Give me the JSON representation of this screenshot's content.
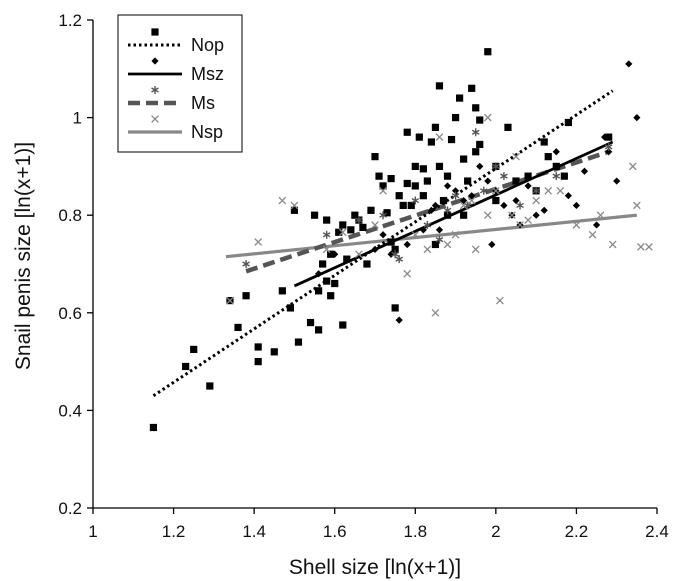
{
  "chart_data": {
    "type": "scatter",
    "title": "",
    "xlabel": "Shell size [ln(x+1)]",
    "ylabel": "Snail penis size [ln(x+1)]",
    "xlim": [
      1,
      2.4
    ],
    "ylim": [
      0.2,
      1.2
    ],
    "x_ticks": [
      "1",
      "1.2",
      "1.4",
      "1.6",
      "1.8",
      "2",
      "2.2",
      "2.4"
    ],
    "y_ticks": [
      "0.2",
      "0.4",
      "0.6",
      "0.8",
      "1",
      "1.2"
    ],
    "grid": false,
    "legend_position": "top-left",
    "series": [
      {
        "name": "Nop",
        "marker": "square",
        "line_style": "dotted",
        "color": "#000000",
        "fit_line": [
          [
            1.15,
            0.43
          ],
          [
            2.29,
            1.055
          ]
        ],
        "points": [
          [
            1.15,
            0.365
          ],
          [
            1.23,
            0.49
          ],
          [
            1.25,
            0.525
          ],
          [
            1.29,
            0.45
          ],
          [
            1.34,
            0.625
          ],
          [
            1.36,
            0.57
          ],
          [
            1.38,
            0.635
          ],
          [
            1.41,
            0.5
          ],
          [
            1.41,
            0.53
          ],
          [
            1.45,
            0.52
          ],
          [
            1.47,
            0.645
          ],
          [
            1.49,
            0.61
          ],
          [
            1.51,
            0.54
          ],
          [
            1.54,
            0.58
          ],
          [
            1.56,
            0.565
          ],
          [
            1.56,
            0.645
          ],
          [
            1.57,
            0.7
          ],
          [
            1.58,
            0.665
          ],
          [
            1.59,
            0.635
          ],
          [
            1.59,
            0.72
          ],
          [
            1.6,
            0.66
          ],
          [
            1.61,
            0.765
          ],
          [
            1.62,
            0.575
          ],
          [
            1.63,
            0.71
          ],
          [
            1.64,
            0.77
          ],
          [
            1.65,
            0.8
          ],
          [
            1.67,
            0.775
          ],
          [
            1.68,
            0.7
          ],
          [
            1.69,
            0.81
          ],
          [
            1.7,
            0.92
          ],
          [
            1.72,
            0.86
          ],
          [
            1.73,
            0.805
          ],
          [
            1.74,
            0.745
          ],
          [
            1.75,
            0.61
          ],
          [
            1.75,
            0.73
          ],
          [
            1.76,
            0.84
          ],
          [
            1.77,
            0.82
          ],
          [
            1.78,
            0.865
          ],
          [
            1.79,
            0.82
          ],
          [
            1.8,
            0.86
          ],
          [
            1.81,
            0.96
          ],
          [
            1.82,
            0.895
          ],
          [
            1.83,
            0.87
          ],
          [
            1.84,
            0.95
          ],
          [
            1.85,
            0.98
          ],
          [
            1.86,
            1.065
          ],
          [
            1.86,
            0.9
          ],
          [
            1.87,
            0.83
          ],
          [
            1.88,
            0.88
          ],
          [
            1.89,
            0.955
          ],
          [
            1.9,
            1.0
          ],
          [
            1.91,
            1.04
          ],
          [
            1.92,
            0.915
          ],
          [
            1.93,
            0.87
          ],
          [
            1.94,
            1.06
          ],
          [
            1.95,
            1.02
          ],
          [
            1.96,
            0.995
          ],
          [
            1.98,
            1.135
          ],
          [
            2.0,
            0.83
          ],
          [
            2.03,
            0.98
          ],
          [
            2.08,
            0.88
          ],
          [
            2.1,
            0.85
          ],
          [
            2.12,
            0.95
          ],
          [
            2.13,
            0.92
          ],
          [
            2.15,
            0.9
          ],
          [
            2.17,
            0.88
          ],
          [
            1.5,
            0.81
          ],
          [
            1.55,
            0.8
          ],
          [
            1.58,
            0.79
          ],
          [
            1.62,
            0.78
          ],
          [
            1.66,
            0.79
          ],
          [
            1.71,
            0.88
          ],
          [
            1.74,
            0.875
          ],
          [
            1.78,
            0.97
          ],
          [
            1.8,
            0.9
          ],
          [
            1.82,
            0.84
          ],
          [
            1.85,
            0.74
          ],
          [
            1.88,
            0.8
          ],
          [
            1.92,
            0.8
          ],
          [
            1.95,
            0.93
          ],
          [
            2.0,
            0.9
          ],
          [
            2.05,
            0.87
          ],
          [
            2.18,
            0.99
          ],
          [
            2.28,
            0.96
          ],
          [
            1.96,
            0.945
          ]
        ]
      },
      {
        "name": "Msz",
        "marker": "diamond",
        "line_style": "solid",
        "color": "#000000",
        "fit_line": [
          [
            1.5,
            0.655
          ],
          [
            2.29,
            0.95
          ]
        ],
        "points": [
          [
            1.56,
            0.68
          ],
          [
            1.6,
            0.72
          ],
          [
            1.7,
            0.73
          ],
          [
            1.72,
            0.76
          ],
          [
            1.78,
            0.74
          ],
          [
            1.82,
            0.77
          ],
          [
            1.85,
            0.82
          ],
          [
            1.86,
            0.77
          ],
          [
            1.88,
            0.86
          ],
          [
            1.9,
            0.85
          ],
          [
            1.92,
            0.83
          ],
          [
            1.94,
            0.84
          ],
          [
            1.96,
            0.9
          ],
          [
            1.98,
            0.87
          ],
          [
            2.0,
            0.85
          ],
          [
            2.02,
            0.82
          ],
          [
            2.05,
            0.83
          ],
          [
            2.06,
            0.78
          ],
          [
            2.08,
            0.86
          ],
          [
            2.1,
            0.8
          ],
          [
            2.12,
            0.81
          ],
          [
            2.15,
            0.93
          ],
          [
            2.18,
            0.84
          ],
          [
            2.2,
            0.82
          ],
          [
            2.22,
            0.89
          ],
          [
            2.25,
            0.78
          ],
          [
            2.28,
            0.93
          ],
          [
            2.3,
            0.87
          ],
          [
            2.33,
            1.11
          ],
          [
            2.35,
            1.0
          ],
          [
            1.76,
            0.585
          ],
          [
            1.74,
            0.72
          ],
          [
            1.84,
            0.81
          ],
          [
            1.99,
            0.74
          ],
          [
            2.04,
            0.8
          ],
          [
            2.27,
            0.96
          ]
        ]
      },
      {
        "name": "Ms",
        "marker": "asterisk",
        "line_style": "dashed",
        "color": "#555555",
        "fit_line": [
          [
            1.38,
            0.685
          ],
          [
            2.28,
            0.93
          ]
        ],
        "points": [
          [
            1.38,
            0.7
          ],
          [
            1.58,
            0.76
          ],
          [
            1.66,
            0.79
          ],
          [
            1.72,
            0.8
          ],
          [
            1.75,
            0.72
          ],
          [
            1.76,
            0.71
          ],
          [
            1.8,
            0.83
          ],
          [
            1.83,
            0.78
          ],
          [
            1.86,
            0.75
          ],
          [
            1.88,
            0.81
          ],
          [
            1.9,
            0.84
          ],
          [
            1.93,
            0.82
          ],
          [
            1.95,
            0.97
          ],
          [
            1.97,
            0.85
          ],
          [
            2.0,
            0.9
          ],
          [
            2.02,
            0.88
          ],
          [
            2.06,
            0.82
          ],
          [
            2.1,
            0.85
          ],
          [
            2.15,
            0.88
          ],
          [
            2.28,
            0.94
          ]
        ]
      },
      {
        "name": "Nsp",
        "marker": "cross",
        "line_style": "solid",
        "color": "#888888",
        "fit_line": [
          [
            1.33,
            0.715
          ],
          [
            2.35,
            0.8
          ]
        ],
        "points": [
          [
            1.34,
            0.625
          ],
          [
            1.41,
            0.745
          ],
          [
            1.47,
            0.83
          ],
          [
            1.5,
            0.82
          ],
          [
            1.58,
            0.73
          ],
          [
            1.62,
            0.765
          ],
          [
            1.66,
            0.72
          ],
          [
            1.7,
            0.78
          ],
          [
            1.72,
            0.85
          ],
          [
            1.78,
            0.68
          ],
          [
            1.8,
            0.76
          ],
          [
            1.83,
            0.73
          ],
          [
            1.85,
            0.6
          ],
          [
            1.88,
            0.74
          ],
          [
            1.9,
            0.76
          ],
          [
            1.92,
            0.82
          ],
          [
            1.95,
            0.73
          ],
          [
            1.98,
            0.8
          ],
          [
            2.0,
            0.85
          ],
          [
            2.01,
            0.625
          ],
          [
            2.04,
            0.8
          ],
          [
            2.06,
            0.78
          ],
          [
            2.08,
            0.79
          ],
          [
            2.1,
            0.83
          ],
          [
            2.13,
            0.85
          ],
          [
            2.16,
            0.85
          ],
          [
            2.2,
            0.78
          ],
          [
            2.24,
            0.76
          ],
          [
            2.26,
            0.8
          ],
          [
            2.29,
            0.74
          ],
          [
            2.34,
            0.9
          ],
          [
            2.35,
            0.82
          ],
          [
            2.36,
            0.735
          ],
          [
            2.38,
            0.735
          ],
          [
            1.94,
            0.83
          ],
          [
            1.98,
            1.0
          ],
          [
            2.05,
            0.92
          ],
          [
            1.86,
            0.96
          ]
        ]
      }
    ]
  }
}
